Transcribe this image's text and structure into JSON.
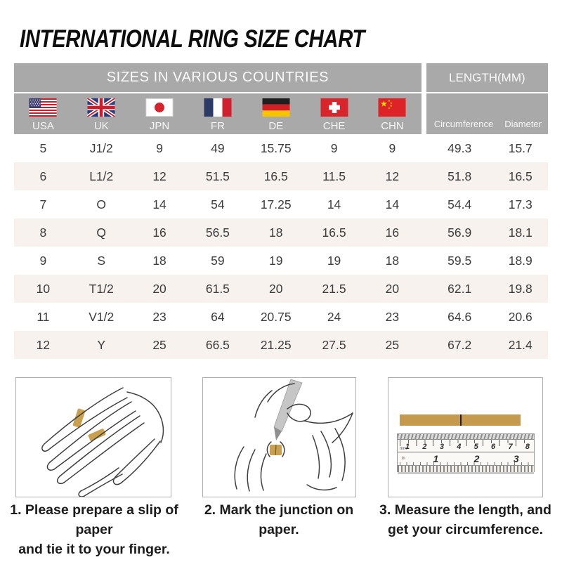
{
  "chart_data": {
    "type": "table",
    "title": "INTERNATIONAL RING SIZE CHART",
    "banner": {
      "sizes_label": "SIZES IN VARIOUS COUNTRIES",
      "length_label": "LENGTH(MM)"
    },
    "country_columns": [
      {
        "code": "USA",
        "flag": "United States"
      },
      {
        "code": "UK",
        "flag": "United Kingdom"
      },
      {
        "code": "JPN",
        "flag": "Japan"
      },
      {
        "code": "FR",
        "flag": "France"
      },
      {
        "code": "DE",
        "flag": "Germany"
      },
      {
        "code": "CHE",
        "flag": "Switzerland"
      },
      {
        "code": "CHN",
        "flag": "China"
      }
    ],
    "length_columns": [
      "Circumference",
      "Diameter"
    ],
    "columns": [
      "USA",
      "UK",
      "JPN",
      "FR",
      "DE",
      "CHE",
      "CHN",
      "Circumference",
      "Diameter"
    ],
    "rows": [
      [
        "5",
        "J1/2",
        "9",
        "49",
        "15.75",
        "9",
        "9",
        "49.3",
        "15.7"
      ],
      [
        "6",
        "L1/2",
        "12",
        "51.5",
        "16.5",
        "11.5",
        "12",
        "51.8",
        "16.5"
      ],
      [
        "7",
        "O",
        "14",
        "54",
        "17.25",
        "14",
        "14",
        "54.4",
        "17.3"
      ],
      [
        "8",
        "Q",
        "16",
        "56.5",
        "18",
        "16.5",
        "16",
        "56.9",
        "18.1"
      ],
      [
        "9",
        "S",
        "18",
        "59",
        "19",
        "19",
        "18",
        "59.5",
        "18.9"
      ],
      [
        "10",
        "T1/2",
        "20",
        "61.5",
        "20",
        "21.5",
        "20",
        "62.1",
        "19.8"
      ],
      [
        "11",
        "V1/2",
        "23",
        "64",
        "20.75",
        "24",
        "23",
        "64.6",
        "20.6"
      ],
      [
        "12",
        "Y",
        "25",
        "66.5",
        "21.25",
        "27.5",
        "25",
        "67.2",
        "21.4"
      ]
    ]
  },
  "instructions": {
    "steps": [
      {
        "caption_line1": "1. Please prepare a slip of paper",
        "caption_line2": "and tie it to your finger."
      },
      {
        "caption_line1": "2. Mark the junction on paper.",
        "caption_line2": ""
      },
      {
        "caption_line1": "3. Measure the length, and",
        "caption_line2": "get your circumference."
      }
    ],
    "ruler": {
      "cm_numbers": [
        "1",
        "2",
        "3",
        "4",
        "5",
        "6",
        "7",
        "8"
      ],
      "inch_numbers": [
        "1",
        "2",
        "3"
      ],
      "mm_label": "mm",
      "in_label": "in"
    }
  },
  "colors": {
    "header_bg": "#a9a9a9",
    "alt_row_bg": "#f8f2ee",
    "table_text": "#3c3c3c",
    "paper_gold": "#c49a4f",
    "title_text": "#0d0d0d"
  }
}
